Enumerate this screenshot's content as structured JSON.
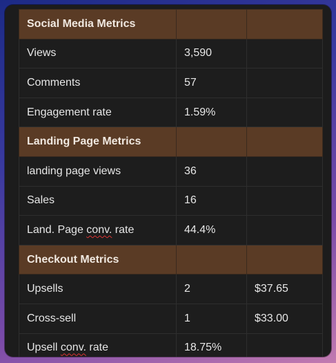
{
  "table": {
    "sections": [
      {
        "title": "Social Media Metrics",
        "rows": [
          {
            "label": "Views",
            "value": "3,590",
            "extra": ""
          },
          {
            "label": "Comments",
            "value": "57",
            "extra": ""
          },
          {
            "label": "Engagement rate",
            "value": "1.59%",
            "extra": ""
          }
        ]
      },
      {
        "title": "Landing Page Metrics",
        "rows": [
          {
            "label": "landing page views",
            "value": "36",
            "extra": ""
          },
          {
            "label": "Sales",
            "value": "16",
            "extra": ""
          },
          {
            "label_pre": "Land. Page ",
            "label_flag": "conv.",
            "label_post": " rate",
            "value": "44.4%",
            "extra": ""
          }
        ]
      },
      {
        "title": "Checkout Metrics",
        "rows": [
          {
            "label": "Upsells",
            "value": "2",
            "extra": "$37.65"
          },
          {
            "label": "Cross-sell",
            "value": "1",
            "extra": "$33.00"
          },
          {
            "label_pre": "Upsell ",
            "label_flag": "conv.",
            "label_post": " rate",
            "value": "18.75%",
            "extra": ""
          }
        ]
      }
    ]
  },
  "colors": {
    "section_bg": "#5a3b25",
    "cell_bg": "#1d1d1d",
    "text": "#e6e6e6"
  }
}
